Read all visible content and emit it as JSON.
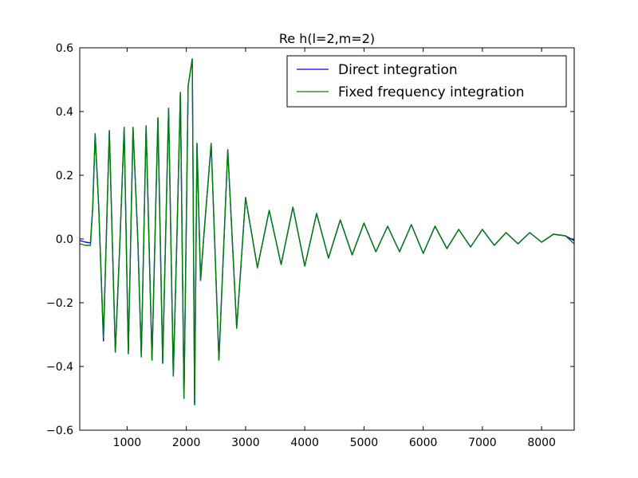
{
  "chart_data": {
    "type": "line",
    "title": "Re h(l=2,m=2)",
    "xlabel": "",
    "ylabel": "",
    "xlim": [
      200,
      8550
    ],
    "ylim": [
      -0.6,
      0.6
    ],
    "x_ticks": [
      1000,
      2000,
      3000,
      4000,
      5000,
      6000,
      7000,
      8000
    ],
    "y_ticks": [
      -0.6,
      -0.4,
      -0.2,
      0.0,
      0.2,
      0.4,
      0.6
    ],
    "x_tick_labels": [
      "1000",
      "2000",
      "3000",
      "4000",
      "5000",
      "6000",
      "7000",
      "8000"
    ],
    "y_tick_labels": [
      "−0.6",
      "−0.4",
      "−0.2",
      "0.0",
      "0.2",
      "0.4",
      "0.6"
    ],
    "grid": false,
    "legend_position": "top-right",
    "series": [
      {
        "name": "Direct integration",
        "color": "#0000ff",
        "x": [
          200,
          300,
          380,
          420,
          460,
          520,
          600,
          700,
          800,
          880,
          950,
          1020,
          1100,
          1180,
          1240,
          1320,
          1420,
          1520,
          1600,
          1700,
          1780,
          1840,
          1900,
          1960,
          2030,
          2100,
          2140,
          2180,
          2240,
          2300,
          2420,
          2550,
          2700,
          2850,
          3000,
          3200,
          3400,
          3600,
          3800,
          4000,
          4200,
          4400,
          4600,
          4800,
          5000,
          5200,
          5400,
          5600,
          5800,
          6000,
          6200,
          6400,
          6600,
          6800,
          7000,
          7200,
          7400,
          7600,
          7800,
          8000,
          8200,
          8400,
          8550
        ],
        "y": [
          -0.005,
          -0.01,
          -0.012,
          0.1,
          0.33,
          0.1,
          -0.32,
          0.34,
          -0.355,
          0.0,
          0.35,
          -0.36,
          0.35,
          0.0,
          -0.37,
          0.355,
          -0.38,
          0.38,
          -0.39,
          0.41,
          -0.43,
          0.0,
          0.46,
          -0.5,
          0.48,
          0.565,
          -0.52,
          0.3,
          -0.13,
          0.02,
          0.3,
          -0.38,
          0.28,
          -0.28,
          0.13,
          -0.09,
          0.09,
          -0.08,
          0.1,
          -0.085,
          0.08,
          -0.06,
          0.06,
          -0.05,
          0.05,
          -0.04,
          0.04,
          -0.04,
          0.045,
          -0.045,
          0.04,
          -0.03,
          0.03,
          -0.025,
          0.03,
          -0.02,
          0.02,
          -0.015,
          0.02,
          -0.01,
          0.015,
          0.01,
          -0.005
        ]
      },
      {
        "name": "Fixed frequency integration",
        "color": "#008000",
        "x": [
          200,
          300,
          380,
          420,
          460,
          520,
          600,
          700,
          800,
          880,
          950,
          1020,
          1100,
          1180,
          1240,
          1320,
          1420,
          1520,
          1600,
          1700,
          1780,
          1840,
          1900,
          1960,
          2030,
          2100,
          2140,
          2180,
          2240,
          2300,
          2420,
          2550,
          2700,
          2850,
          3000,
          3200,
          3400,
          3600,
          3800,
          4000,
          4200,
          4400,
          4600,
          4800,
          5000,
          5200,
          5400,
          5600,
          5800,
          6000,
          6200,
          6400,
          6600,
          6800,
          7000,
          7200,
          7400,
          7600,
          7800,
          8000,
          8200,
          8400,
          8550
        ],
        "y": [
          -0.015,
          -0.02,
          -0.02,
          0.1,
          0.33,
          0.1,
          -0.31,
          0.34,
          -0.355,
          0.0,
          0.35,
          -0.36,
          0.35,
          0.0,
          -0.37,
          0.355,
          -0.38,
          0.38,
          -0.39,
          0.41,
          -0.43,
          0.0,
          0.46,
          -0.5,
          0.48,
          0.565,
          -0.52,
          0.3,
          -0.13,
          0.02,
          0.3,
          -0.38,
          0.28,
          -0.28,
          0.13,
          -0.09,
          0.09,
          -0.08,
          0.1,
          -0.085,
          0.08,
          -0.06,
          0.06,
          -0.05,
          0.05,
          -0.04,
          0.04,
          -0.04,
          0.045,
          -0.045,
          0.04,
          -0.03,
          0.03,
          -0.025,
          0.03,
          -0.02,
          0.02,
          -0.015,
          0.02,
          -0.01,
          0.015,
          0.01,
          -0.015
        ]
      }
    ]
  }
}
